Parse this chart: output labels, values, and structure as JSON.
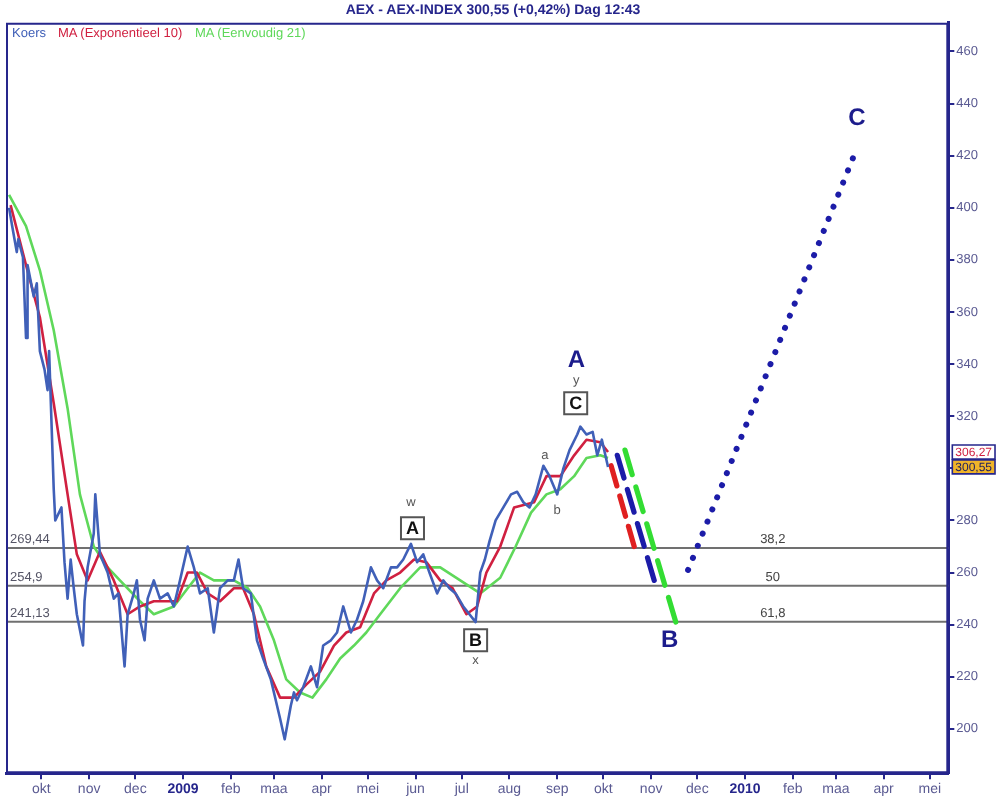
{
  "chart_data": {
    "type": "line",
    "title": "AEX - AEX-INDEX 300,55 (+0,42%) Dag 12:43",
    "xlim": [
      "2008-09-08",
      "2010-05-13"
    ],
    "xticks": [
      {
        "value": "2008-10",
        "label": "okt"
      },
      {
        "value": "2008-11",
        "label": "nov"
      },
      {
        "value": "2008-12",
        "label": "dec"
      },
      {
        "value": "2009-01",
        "label": "2009"
      },
      {
        "value": "2009-02",
        "label": "feb"
      },
      {
        "value": "2009-03",
        "label": "maa"
      },
      {
        "value": "2009-04",
        "label": "apr"
      },
      {
        "value": "2009-05",
        "label": "mei"
      },
      {
        "value": "2009-06",
        "label": "jun"
      },
      {
        "value": "2009-07",
        "label": "jul"
      },
      {
        "value": "2009-08",
        "label": "aug"
      },
      {
        "value": "2009-09",
        "label": "sep"
      },
      {
        "value": "2009-10",
        "label": "okt"
      },
      {
        "value": "2009-11",
        "label": "nov"
      },
      {
        "value": "2009-12",
        "label": "dec"
      },
      {
        "value": "2010-01",
        "label": "2010"
      },
      {
        "value": "2010-02",
        "label": "feb"
      },
      {
        "value": "2010-03",
        "label": "maa"
      },
      {
        "value": "2010-04",
        "label": "apr"
      },
      {
        "value": "2010-05",
        "label": "mei"
      }
    ],
    "ylim": [
      183,
      471
    ],
    "yticks": [
      200,
      220,
      240,
      260,
      280,
      {
        "value": 300,
        "label": null
      },
      320,
      340,
      360,
      380,
      400,
      420,
      440,
      460
    ],
    "legend": "top left",
    "series": [
      {
        "name": "Koers",
        "color": "#4060b8",
        "x": [
          "2008-09-10",
          "2008-09-12",
          "2008-09-15",
          "2008-09-16",
          "2008-09-19",
          "2008-09-21",
          "2008-09-22",
          "2008-09-26",
          "2008-09-28",
          "2008-09-30",
          "2008-10-03",
          "2008-10-05",
          "2008-10-06",
          "2008-10-09",
          "2008-10-10",
          "2008-10-14",
          "2008-10-16",
          "2008-10-18",
          "2008-10-20",
          "2008-10-22",
          "2008-10-24",
          "2008-10-28",
          "2008-10-29",
          "2008-10-31",
          "2008-11-04",
          "2008-11-05",
          "2008-11-08",
          "2008-11-13",
          "2008-11-17",
          "2008-11-20",
          "2008-11-24",
          "2008-11-26",
          "2008-11-30",
          "2008-12-02",
          "2008-12-04",
          "2008-12-07",
          "2008-12-09",
          "2008-12-13",
          "2008-12-17",
          "2008-12-22",
          "2008-12-26",
          "2008-12-30",
          "2009-01-04",
          "2009-01-08",
          "2009-01-12",
          "2009-01-17",
          "2009-01-21",
          "2009-01-25",
          "2009-01-30",
          "2009-02-03",
          "2009-02-06",
          "2009-02-09",
          "2009-02-14",
          "2009-02-18",
          "2009-02-22",
          "2009-02-27",
          "2009-03-03",
          "2009-03-05",
          "2009-03-08",
          "2009-03-12",
          "2009-03-14",
          "2009-03-16",
          "2009-03-20",
          "2009-03-25",
          "2009-03-29",
          "2009-04-02",
          "2009-04-07",
          "2009-04-11",
          "2009-04-15",
          "2009-04-20",
          "2009-04-24",
          "2009-04-28",
          "2009-05-03",
          "2009-05-07",
          "2009-05-11",
          "2009-05-16",
          "2009-05-20",
          "2009-05-24",
          "2009-05-29",
          "2009-06-02",
          "2009-06-06",
          "2009-06-10",
          "2009-06-15",
          "2009-06-19",
          "2009-06-23",
          "2009-06-27",
          "2009-07-02",
          "2009-07-06",
          "2009-07-10",
          "2009-07-13",
          "2009-07-16",
          "2009-07-19",
          "2009-07-23",
          "2009-07-28",
          "2009-08-02",
          "2009-08-06",
          "2009-08-10",
          "2009-08-14",
          "2009-08-18",
          "2009-08-23",
          "2009-08-27",
          "2009-09-01",
          "2009-09-05",
          "2009-09-09",
          "2009-09-14",
          "2009-09-16",
          "2009-09-20",
          "2009-09-24",
          "2009-09-27",
          "2009-09-30",
          "2009-10-04"
        ],
        "values": [
          400,
          393,
          383,
          388,
          381,
          350,
          378,
          366,
          371,
          345,
          338,
          330,
          345,
          292,
          280,
          285,
          264,
          250,
          265,
          254,
          244,
          232,
          249,
          262,
          275,
          290,
          267,
          260,
          250,
          252,
          224,
          244,
          252,
          257,
          242,
          234,
          250,
          257,
          250,
          252,
          247,
          257,
          270,
          262,
          252,
          254,
          237,
          254,
          257,
          257,
          265,
          254,
          252,
          234,
          227,
          219,
          209,
          204,
          196,
          209,
          214,
          211,
          216,
          224,
          216,
          232,
          234,
          237,
          247,
          237,
          242,
          249,
          262,
          257,
          254,
          262,
          262,
          265,
          271,
          264,
          267,
          260,
          252,
          257,
          254,
          252,
          247,
          244,
          241,
          260,
          265,
          272,
          280,
          285,
          290,
          291,
          287,
          285,
          290,
          301,
          297,
          290,
          300,
          307,
          313,
          316,
          313,
          314,
          305,
          311,
          300.55
        ]
      },
      {
        "name": "MA (Exponentieel 10)",
        "color": "#d02040",
        "x": [
          "2008-09-11",
          "2008-09-21",
          "2008-09-30",
          "2008-10-09",
          "2008-10-18",
          "2008-10-24",
          "2008-10-31",
          "2008-11-08",
          "2008-11-17",
          "2008-11-26",
          "2008-12-04",
          "2008-12-13",
          "2008-12-22",
          "2008-12-28",
          "2009-01-04",
          "2009-01-10",
          "2009-01-17",
          "2009-01-25",
          "2009-02-03",
          "2009-02-09",
          "2009-02-16",
          "2009-02-24",
          "2009-03-05",
          "2009-03-14",
          "2009-03-22",
          "2009-03-31",
          "2009-04-09",
          "2009-04-17",
          "2009-04-26",
          "2009-05-05",
          "2009-05-13",
          "2009-05-22",
          "2009-05-31",
          "2009-06-08",
          "2009-06-17",
          "2009-06-25",
          "2009-07-04",
          "2009-07-11",
          "2009-07-17",
          "2009-07-26",
          "2009-08-04",
          "2009-08-17",
          "2009-08-25",
          "2009-09-03",
          "2009-09-12",
          "2009-09-20",
          "2009-09-29",
          "2009-10-04"
        ],
        "values": [
          401,
          378,
          358,
          325,
          290,
          267,
          257,
          268,
          257,
          244,
          247,
          249,
          249,
          249,
          260,
          260,
          252,
          249,
          254,
          254,
          244,
          224,
          212,
          212,
          217,
          222,
          232,
          237,
          239,
          252,
          257,
          260,
          265,
          264,
          257,
          254,
          244,
          247,
          260,
          270,
          285,
          287,
          297,
          297,
          305,
          311,
          310,
          306.27
        ]
      },
      {
        "name": "MA (Eenvoudig 21)",
        "color": "#5fd85a",
        "x": [
          "2008-09-10",
          "2008-09-21",
          "2008-09-30",
          "2008-10-09",
          "2008-10-18",
          "2008-10-26",
          "2008-11-04",
          "2008-11-13",
          "2008-11-21",
          "2008-12-04",
          "2008-12-13",
          "2008-12-26",
          "2009-01-04",
          "2009-01-12",
          "2009-01-21",
          "2009-02-03",
          "2009-02-12",
          "2009-02-20",
          "2009-03-01",
          "2009-03-09",
          "2009-03-18",
          "2009-03-26",
          "2009-04-04",
          "2009-04-13",
          "2009-04-22",
          "2009-04-30",
          "2009-05-09",
          "2009-05-22",
          "2009-06-04",
          "2009-06-17",
          "2009-06-30",
          "2009-07-13",
          "2009-07-26",
          "2009-08-05",
          "2009-08-15",
          "2009-08-25",
          "2009-09-03",
          "2009-09-12",
          "2009-09-20",
          "2009-09-29",
          "2009-10-04"
        ],
        "values": [
          405,
          393,
          376,
          353,
          323,
          290,
          270,
          262,
          257,
          249,
          244,
          247,
          254,
          260,
          257,
          257,
          254,
          247,
          234,
          219,
          214,
          212,
          219,
          227,
          232,
          237,
          244,
          254,
          262,
          262,
          257,
          252,
          258,
          270,
          283,
          290,
          292,
          297,
          304,
          305,
          304
        ]
      },
      {
        "color": "#e02020",
        "line_style": "dashed",
        "x": [
          "2009-10-06",
          "2009-10-21"
        ],
        "values": [
          301,
          270
        ]
      },
      {
        "color": "#1c1ca8",
        "line_style": "dashed",
        "x": [
          "2009-10-10",
          "2009-11-03"
        ],
        "values": [
          305,
          257
        ]
      },
      {
        "color": "#33dd33",
        "line_style": "dashed",
        "x": [
          "2009-10-15",
          "2009-11-17"
        ],
        "values": [
          307,
          241
        ]
      },
      {
        "color": "#1c1ca8",
        "line_style": "dotted",
        "x": [
          "2009-11-25",
          "2010-03-12"
        ],
        "values": [
          261,
          419
        ]
      }
    ],
    "ref_lines": [
      {
        "axis": "y",
        "value": 269.44,
        "label": "269,44",
        "color": "#707070"
      },
      {
        "axis": "y",
        "value": 254.9,
        "label": "254,9",
        "color": "#707070"
      },
      {
        "axis": "y",
        "value": 241.13,
        "label": "241,13",
        "color": "#707070"
      }
    ],
    "annotations": [
      {
        "text": "A",
        "x": "2009-09-16",
        "y": 316
      },
      {
        "text": "y",
        "x": "2009-09-16",
        "y": 316
      },
      {
        "text": "C",
        "x": "2009-09-13",
        "y": 325
      },
      {
        "text": "w",
        "x": "2009-05-29",
        "y": 271
      },
      {
        "text": "A",
        "x": "2009-05-30",
        "y": 277
      },
      {
        "text": "B",
        "x": "2009-07-10",
        "y": 234
      },
      {
        "text": "x",
        "x": "2009-07-10",
        "y": 241
      },
      {
        "text": "a",
        "x": "2009-08-24",
        "y": 305
      },
      {
        "text": "b",
        "x": "2009-09-01",
        "y": 290
      },
      {
        "text": "B",
        "x": "2009-11-17",
        "y": 241
      },
      {
        "text": "C",
        "x": "2010-03-12",
        "y": 419
      },
      {
        "text": "38,2",
        "x": "2010-01-19",
        "y": 269.44
      },
      {
        "text": "50",
        "x": "2010-01-19",
        "y": 254.9
      },
      {
        "text": "61,8",
        "x": "2010-01-19",
        "y": 241.13
      },
      "306,27",
      "300,55"
    ]
  }
}
